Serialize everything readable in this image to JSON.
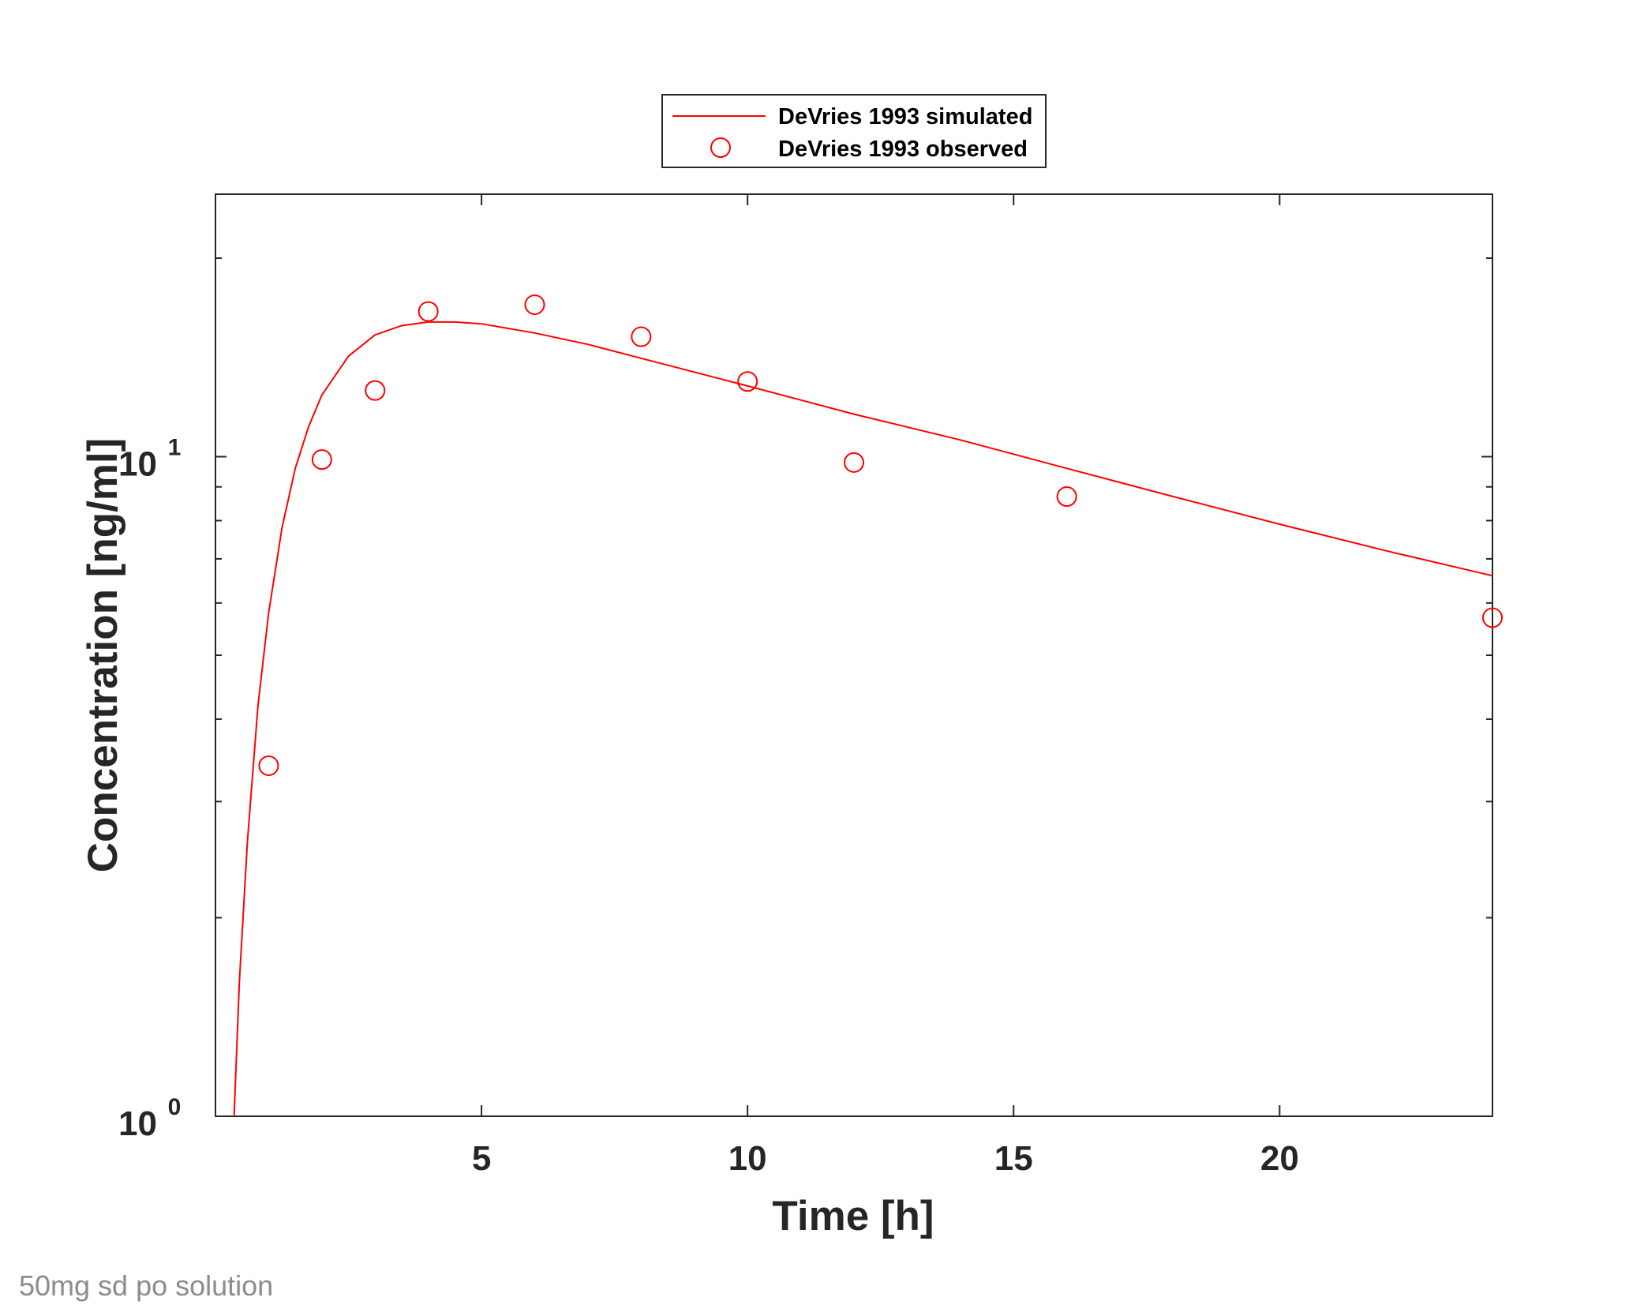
{
  "caption": "50mg sd po solution",
  "colors": {
    "series": "#ff0000",
    "axes": "#262626",
    "caption": "#8c8c8c"
  },
  "chart_data": {
    "type": "line",
    "title": "",
    "xlabel": "Time [h]",
    "ylabel": "Concentration [ng/ml]",
    "xlim": [
      0,
      24
    ],
    "ylim": [
      1,
      25
    ],
    "yscale": "log",
    "grid": false,
    "legend_position": "top (outside plot)",
    "x_ticks": [
      5,
      10,
      15,
      20
    ],
    "x_tick_labels": [
      "5",
      "10",
      "15",
      "20"
    ],
    "y_ticks": [
      1,
      10
    ],
    "y_tick_labels": [
      {
        "base": "10",
        "exp": "0"
      },
      {
        "base": "10",
        "exp": "1"
      }
    ],
    "series": [
      {
        "name": "DeVries 1993 simulated",
        "style": "line",
        "color": "#ff0000",
        "x": [
          0.35,
          0.45,
          0.6,
          0.8,
          1.0,
          1.25,
          1.5,
          1.75,
          2.0,
          2.5,
          3.0,
          3.5,
          4.0,
          4.5,
          5.0,
          6.0,
          7.0,
          8.0,
          10.0,
          12.0,
          14.0,
          16.0,
          18.0,
          20.0,
          22.0,
          24.0
        ],
        "y": [
          1.0,
          1.6,
          2.6,
          4.2,
          5.8,
          7.8,
          9.6,
          11.1,
          12.4,
          14.2,
          15.3,
          15.8,
          16.0,
          16.0,
          15.9,
          15.4,
          14.8,
          14.1,
          12.8,
          11.6,
          10.6,
          9.6,
          8.7,
          7.9,
          7.2,
          6.6
        ]
      },
      {
        "name": "DeVries 1993 observed",
        "style": "markers",
        "marker": "circle",
        "color": "#ff0000",
        "x": [
          1,
          2,
          3,
          4,
          6,
          8,
          10,
          12,
          16,
          24
        ],
        "y": [
          3.4,
          9.9,
          12.6,
          16.6,
          17.0,
          15.2,
          13.0,
          9.8,
          8.7,
          5.7
        ]
      }
    ]
  }
}
